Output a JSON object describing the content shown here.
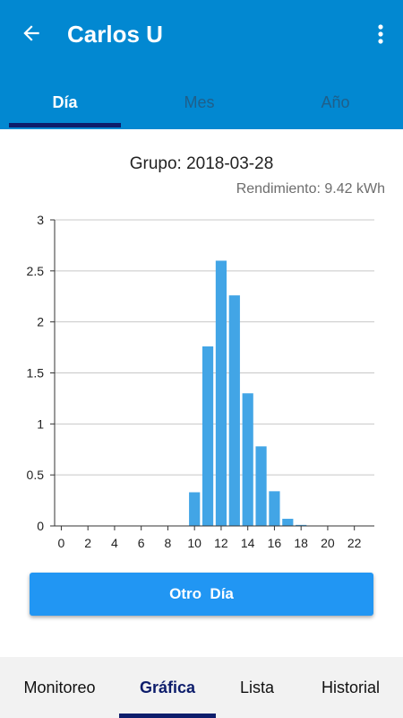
{
  "header": {
    "title": "Carlos U",
    "back_icon": "arrow-left-icon",
    "menu_icon": "more-vert-icon"
  },
  "tabs": [
    {
      "label": "Día",
      "active": true
    },
    {
      "label": "Mes",
      "active": false
    },
    {
      "label": "Año",
      "active": false
    }
  ],
  "summary": {
    "group_title": "Grupo: 2018-03-28",
    "yield_text": "Rendimiento: 9.42 kWh"
  },
  "chart_data": {
    "type": "bar",
    "title": "",
    "xlabel": "",
    "ylabel": "",
    "x": [
      0,
      1,
      2,
      3,
      4,
      5,
      6,
      7,
      8,
      9,
      10,
      11,
      12,
      13,
      14,
      15,
      16,
      17,
      18,
      19,
      20,
      21,
      22,
      23
    ],
    "values": [
      0,
      0,
      0,
      0,
      0,
      0,
      0,
      0,
      0,
      0,
      0.33,
      1.76,
      2.6,
      2.26,
      1.3,
      0.78,
      0.34,
      0.07,
      0.01,
      0,
      0,
      0,
      0,
      0
    ],
    "xticks": [
      0,
      2,
      4,
      6,
      8,
      10,
      12,
      14,
      16,
      18,
      20,
      22
    ],
    "yticks": [
      0,
      0.5,
      1,
      1.5,
      2,
      2.5,
      3
    ],
    "ylim": [
      0,
      3
    ],
    "xlim": [
      -0.5,
      23.5
    ],
    "bar_color": "#42a5e6",
    "grid": true
  },
  "action": {
    "label": "Otro  Día"
  },
  "bottom_nav": [
    {
      "label": "Monitoreo",
      "active": false
    },
    {
      "label": "Gráfica",
      "active": true
    },
    {
      "label": "Lista",
      "active": false
    },
    {
      "label": "Historial",
      "active": false
    }
  ],
  "colors": {
    "app_bar": "#0288d1",
    "indicator": "#0d1d6b",
    "button": "#2196f3"
  }
}
